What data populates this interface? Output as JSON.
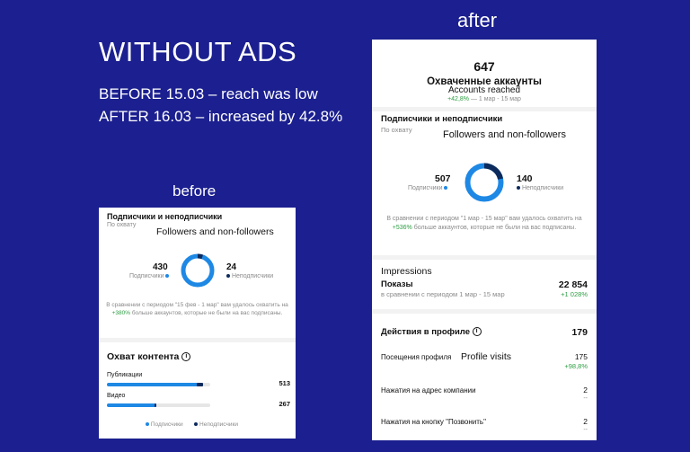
{
  "headline": {
    "title": "WITHOUT ADS",
    "line1": "BEFORE 15.03 – reach was low",
    "line2": "AFTER 16.03 – increased by 42.8%"
  },
  "before": {
    "label": "before",
    "followers": {
      "title": "Подписчики и неподписчики",
      "subtitle": "По охвату",
      "overlay": "Followers and non-followers",
      "followers_value": "430",
      "followers_label": "Подписчики",
      "nonfollowers_value": "24",
      "nonfollowers_label": "Неподписчики",
      "share": 0.947,
      "note_prefix": "В сравнении с периодом \"15 фев - 1 мар\" вам удалось охватить на",
      "note_percent": "+380%",
      "note_suffix": "больше аккаунтов, которые не были на вас подписаны."
    },
    "reach": {
      "title": "Охват контента",
      "rows": [
        {
          "label": "Публикации",
          "value": "513",
          "fraction": 0.93
        },
        {
          "label": "Видео",
          "value": "267",
          "fraction": 0.48
        }
      ],
      "legend_followers": "Подписчики",
      "legend_nonfollowers": "Неподписчики"
    }
  },
  "after": {
    "label": "after",
    "accounts": {
      "value": "647",
      "title": "Охваченные аккаунты",
      "overlay": "Accounts reached",
      "change": "+42,8%",
      "period": "— 1 мар - 15 мар"
    },
    "followers": {
      "title": "Подписчики и неподписчики",
      "subtitle": "По охвату",
      "overlay": "Followers and non-followers",
      "followers_value": "507",
      "followers_label": "Подписчики",
      "nonfollowers_value": "140",
      "nonfollowers_label": "Неподписчики",
      "share": 0.784,
      "note_prefix": "В сравнении с периодом \"1 мар - 15 мар\" вам удалось охватить на",
      "note_percent": "+536%",
      "note_suffix": "больше аккаунтов, которые не были на вас подписаны."
    },
    "impressions": {
      "overlay": "Impressions",
      "title": "Показы",
      "value": "22 854",
      "subtitle": "в сравнении с периодом 1 мар - 15 мар",
      "change": "+1 028%"
    },
    "profile": {
      "title": "Действия в профиле",
      "value": "179",
      "visits_label": "Посещения профиля",
      "visits_overlay": "Profile visits",
      "visits_value": "175",
      "visits_change": "+98,8%",
      "address_label": "Нажатия на адрес компании",
      "address_value": "2",
      "address_change": "--",
      "call_label": "Нажатия на кнопку \"Позвонить\"",
      "call_value": "2",
      "call_change": "--"
    }
  },
  "colors": {
    "background": "#1b1f8f",
    "followers": "#1e88e5",
    "nonfollowers": "#0d2a5c",
    "positive": "#2f9e44"
  }
}
